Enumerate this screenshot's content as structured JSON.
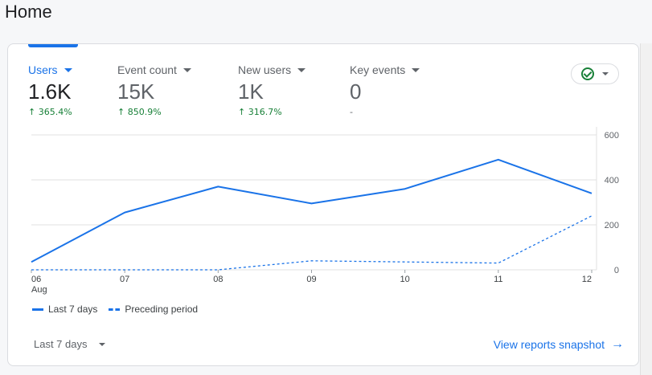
{
  "page": {
    "title": "Home"
  },
  "metrics": [
    {
      "label": "Users",
      "value": "1.6K",
      "change": "365.4%",
      "arrow": "↑",
      "selected": true
    },
    {
      "label": "Event count",
      "value": "15K",
      "change": "850.9%",
      "arrow": "↑",
      "selected": false
    },
    {
      "label": "New users",
      "value": "1K",
      "change": "316.7%",
      "arrow": "↑",
      "selected": false
    },
    {
      "label": "Key events",
      "value": "0",
      "change": "-",
      "arrow": "",
      "selected": false
    }
  ],
  "status_control": {
    "icon": "check-circle-icon",
    "caret": "chevron-down-icon"
  },
  "chart_data": {
    "type": "line",
    "categories": [
      "06",
      "07",
      "08",
      "09",
      "10",
      "11",
      "12"
    ],
    "x_month_label": "Aug",
    "series": [
      {
        "name": "Last 7 days",
        "style": "solid",
        "values": [
          35,
          255,
          370,
          295,
          360,
          490,
          340
        ]
      },
      {
        "name": "Preceding period",
        "style": "dashed",
        "values": [
          0,
          0,
          0,
          40,
          35,
          30,
          240
        ]
      }
    ],
    "ylim": [
      0,
      600
    ],
    "yticks": [
      "0",
      "200",
      "400",
      "600"
    ],
    "y_axis_side": "right",
    "grid": true,
    "legend_position": "bottom-left",
    "colors": {
      "line": "#1a73e8",
      "grid": "#e0e0e0"
    }
  },
  "footer": {
    "range_label": "Last 7 days",
    "link_label": "View reports snapshot",
    "link_icon": "arrow-right-icon"
  }
}
